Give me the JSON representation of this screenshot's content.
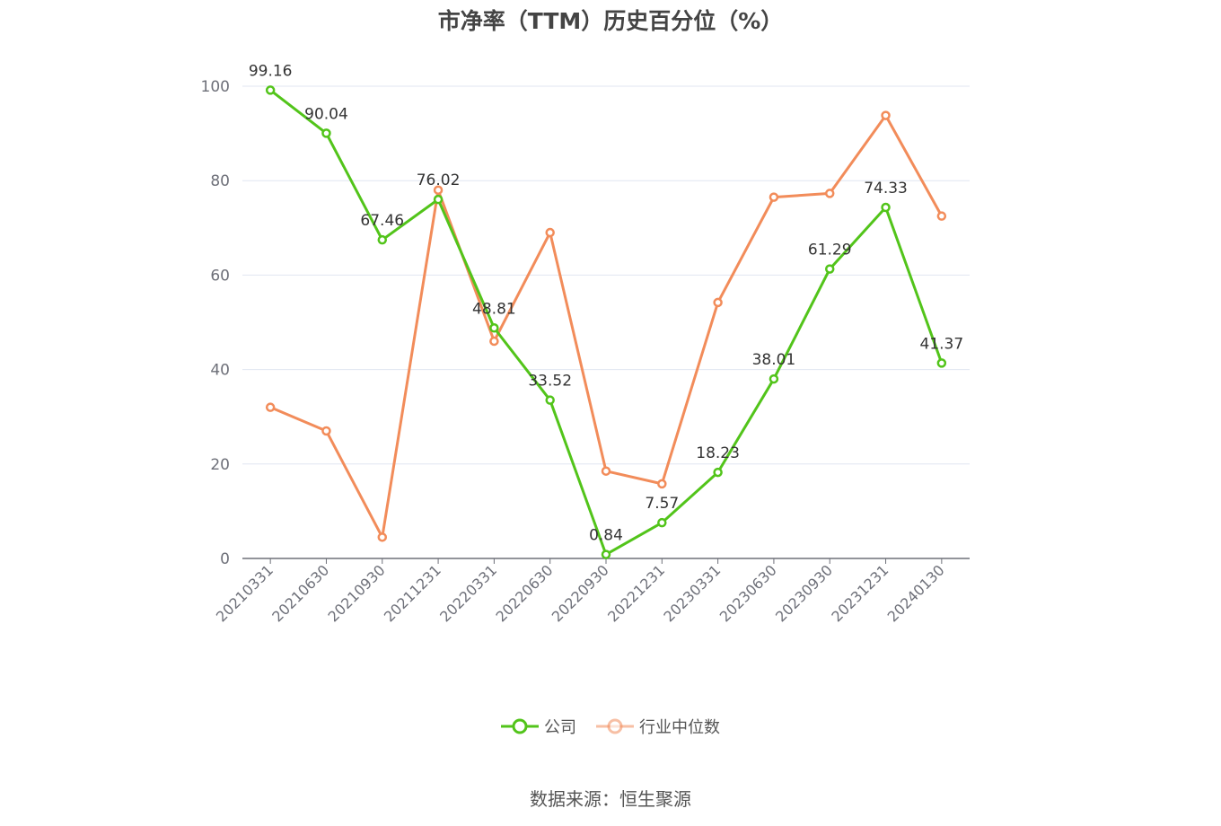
{
  "chart_data": {
    "type": "line",
    "title": "市净率（TTM）历史百分位（%）",
    "categories": [
      "20210331",
      "20210630",
      "20210930",
      "20211231",
      "20220331",
      "20220630",
      "20220930",
      "20221231",
      "20230331",
      "20230630",
      "20230930",
      "20231231",
      "20240130"
    ],
    "ylim": [
      0,
      100
    ],
    "yticks": [
      0,
      20,
      40,
      60,
      80,
      100
    ],
    "grid": true,
    "legend_position": "bottom",
    "series": [
      {
        "name": "公司",
        "color": "#52c41a",
        "show_labels": true,
        "values": [
          99.16,
          90.04,
          67.46,
          76.02,
          48.81,
          33.52,
          0.84,
          7.57,
          18.23,
          38.01,
          61.29,
          74.33,
          41.37
        ]
      },
      {
        "name": "行业中位数",
        "color": "#f28c5a",
        "show_labels": false,
        "values": [
          32.0,
          27.0,
          4.5,
          78.0,
          46.0,
          69.0,
          18.5,
          15.8,
          54.2,
          76.5,
          77.3,
          93.8,
          72.5
        ]
      }
    ]
  },
  "source": "数据来源：恒生聚源"
}
